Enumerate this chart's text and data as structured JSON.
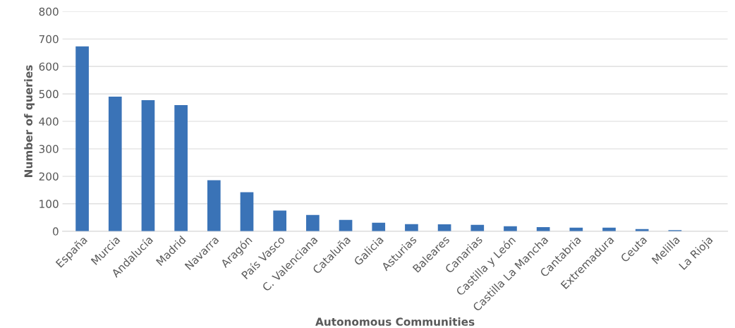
{
  "chart_data": {
    "type": "bar",
    "xlabel": "Autonomous Communities",
    "ylabel": "Number of queries",
    "categories": [
      "España",
      "Murcia",
      "Andalucía",
      "Madrid",
      "Navarra",
      "Aragón",
      "País Vasco",
      "C. Valenciana",
      "Cataluña",
      "Galicia",
      "Asturias",
      "Baleares",
      "Canarias",
      "Castilla y León",
      "Castilla La Mancha",
      "Cantabria",
      "Extremadura",
      "Ceuta",
      "Melilla",
      "La Rioja"
    ],
    "values": [
      673,
      490,
      477,
      459,
      186,
      142,
      75,
      59,
      41,
      31,
      26,
      25,
      23,
      18,
      15,
      13,
      13,
      8,
      4,
      0
    ],
    "color": "#3a73b7",
    "ylim": [
      0,
      800
    ],
    "yticks": [
      0,
      100,
      200,
      300,
      400,
      500,
      600,
      700,
      800
    ],
    "grid": "y"
  }
}
